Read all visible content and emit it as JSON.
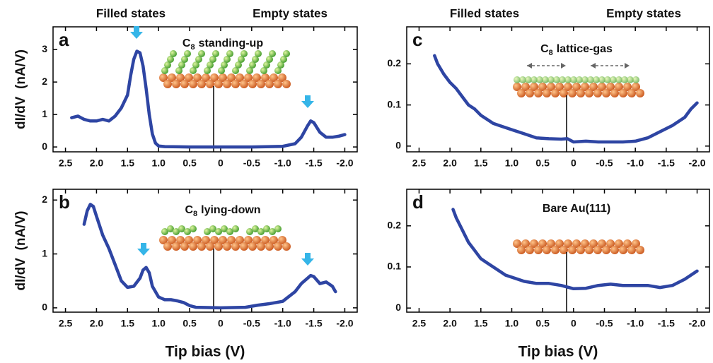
{
  "chart_data": [
    {
      "type": "line",
      "panel_label": "a",
      "annotations": [
        "Filled states",
        "Empty states"
      ],
      "inset_label": {
        "main": "C",
        "sub": "8",
        "rest": "standing-up"
      },
      "ylabel": "dI/dV  (nA/V)",
      "xlim": [
        2.7,
        -2.2
      ],
      "ylim": [
        -0.15,
        3.7
      ],
      "xticks": [
        2.5,
        {
          "value": 2,
          "label": "2.0"
        },
        1.5,
        {
          "value": 1,
          "label": "1.0"
        },
        0.5,
        0,
        -0.5,
        {
          "value": -1,
          "label": "-1.0"
        },
        -1.5,
        {
          "value": -2,
          "label": "-2.0"
        }
      ],
      "yticks": [
        0,
        1,
        2,
        3
      ],
      "series": [
        {
          "color": "#2e45a3",
          "x": [
            2.4,
            2.3,
            2.2,
            2.1,
            2.0,
            1.9,
            1.8,
            1.7,
            1.6,
            1.5,
            1.45,
            1.4,
            1.35,
            1.3,
            1.25,
            1.2,
            1.15,
            1.1,
            1.05,
            1.0,
            0.9,
            0.5,
            0,
            -0.5,
            -1.0,
            -1.2,
            -1.3,
            -1.4,
            -1.45,
            -1.5,
            -1.6,
            -1.7,
            -1.8,
            -1.9,
            -2.0
          ],
          "values": [
            0.9,
            0.95,
            0.85,
            0.8,
            0.8,
            0.85,
            0.8,
            0.95,
            1.2,
            1.6,
            2.2,
            2.7,
            2.95,
            2.9,
            2.5,
            1.8,
            1.0,
            0.4,
            0.12,
            0.03,
            0.01,
            0,
            0,
            0,
            0.02,
            0.1,
            0.3,
            0.65,
            0.8,
            0.75,
            0.45,
            0.3,
            0.3,
            0.33,
            0.38
          ]
        }
      ]
    },
    {
      "type": "line",
      "panel_label": "b",
      "inset_label": {
        "main": "C",
        "sub": "8",
        "rest": "lying-down"
      },
      "ylabel": "dI/dV  (nA/V)",
      "xlabel": "Tip bias (V)",
      "xlim": [
        2.7,
        -2.2
      ],
      "ylim": [
        -0.08,
        2.2
      ],
      "xticks": [
        2.5,
        {
          "value": 2,
          "label": "2.0"
        },
        1.5,
        {
          "value": 1,
          "label": "1.0"
        },
        0.5,
        0,
        -0.5,
        {
          "value": -1,
          "label": "-1.0"
        },
        -1.5,
        {
          "value": -2,
          "label": "-2.0"
        }
      ],
      "yticks": [
        0,
        1,
        2
      ],
      "series": [
        {
          "color": "#2e45a3",
          "x": [
            2.2,
            2.15,
            2.1,
            2.05,
            2.0,
            1.9,
            1.8,
            1.7,
            1.6,
            1.5,
            1.4,
            1.3,
            1.25,
            1.2,
            1.15,
            1.1,
            1.0,
            0.9,
            0.8,
            0.7,
            0.6,
            0.5,
            0.4,
            0,
            -0.4,
            -0.6,
            -0.8,
            -1.0,
            -1.2,
            -1.3,
            -1.4,
            -1.45,
            -1.5,
            -1.6,
            -1.7,
            -1.8,
            -1.85
          ],
          "values": [
            1.55,
            1.8,
            1.92,
            1.88,
            1.7,
            1.35,
            1.1,
            0.8,
            0.5,
            0.38,
            0.4,
            0.55,
            0.7,
            0.75,
            0.65,
            0.4,
            0.2,
            0.15,
            0.15,
            0.13,
            0.1,
            0.04,
            0.01,
            0,
            0.01,
            0.05,
            0.08,
            0.12,
            0.3,
            0.45,
            0.55,
            0.6,
            0.58,
            0.45,
            0.48,
            0.4,
            0.3
          ]
        }
      ]
    },
    {
      "type": "line",
      "panel_label": "c",
      "annotations": [
        "Filled states",
        "Empty states"
      ],
      "inset_label": {
        "main": "C",
        "sub": "8",
        "rest": "lattice-gas"
      },
      "xlim": [
        2.7,
        -2.2
      ],
      "ylim": [
        -0.014,
        0.29
      ],
      "xticks": [
        2.5,
        {
          "value": 2,
          "label": "2.0"
        },
        1.5,
        {
          "value": 1,
          "label": "1.0"
        },
        0.5,
        0,
        -0.5,
        {
          "value": -1,
          "label": "-1.0"
        },
        -1.5,
        {
          "value": -2,
          "label": "-2.0"
        }
      ],
      "yticks": [
        0,
        0.1,
        0.2
      ],
      "series": [
        {
          "color": "#2e45a3",
          "x": [
            2.25,
            2.2,
            2.1,
            2.0,
            1.9,
            1.8,
            1.7,
            1.6,
            1.5,
            1.4,
            1.3,
            1.2,
            1.0,
            0.8,
            0.6,
            0.4,
            0.2,
            0.1,
            0,
            -0.2,
            -0.4,
            -0.6,
            -0.8,
            -1.0,
            -1.2,
            -1.4,
            -1.6,
            -1.8,
            -1.9,
            -2.0
          ],
          "values": [
            0.22,
            0.2,
            0.175,
            0.155,
            0.14,
            0.12,
            0.1,
            0.09,
            0.075,
            0.065,
            0.055,
            0.05,
            0.04,
            0.03,
            0.02,
            0.018,
            0.017,
            0.018,
            0.01,
            0.012,
            0.01,
            0.01,
            0.01,
            0.012,
            0.02,
            0.035,
            0.05,
            0.07,
            0.09,
            0.105
          ]
        }
      ]
    },
    {
      "type": "line",
      "panel_label": "d",
      "inset_label": {
        "main": "Bare Au(111)"
      },
      "xlabel": "Tip bias (V)",
      "xlim": [
        2.7,
        -2.2
      ],
      "ylim": [
        -0.01,
        0.289
      ],
      "xticks": [
        2.5,
        {
          "value": 2,
          "label": "2.0"
        },
        1.5,
        {
          "value": 1,
          "label": "1.0"
        },
        0.5,
        0,
        -0.5,
        {
          "value": -1,
          "label": "-1.0"
        },
        -1.5,
        {
          "value": -2,
          "label": "-2.0"
        }
      ],
      "yticks": [
        0,
        0.1,
        0.2
      ],
      "series": [
        {
          "color": "#2e45a3",
          "x": [
            1.95,
            1.9,
            1.8,
            1.7,
            1.6,
            1.5,
            1.4,
            1.3,
            1.2,
            1.1,
            1.0,
            0.8,
            0.6,
            0.4,
            0.2,
            0,
            -0.2,
            -0.4,
            -0.6,
            -0.8,
            -1.0,
            -1.2,
            -1.4,
            -1.6,
            -1.8,
            -2.0
          ],
          "values": [
            0.24,
            0.22,
            0.19,
            0.16,
            0.14,
            0.12,
            0.11,
            0.1,
            0.09,
            0.08,
            0.075,
            0.065,
            0.06,
            0.06,
            0.055,
            0.047,
            0.048,
            0.055,
            0.058,
            0.055,
            0.055,
            0.055,
            0.05,
            0.055,
            0.07,
            0.09
          ]
        }
      ]
    }
  ]
}
